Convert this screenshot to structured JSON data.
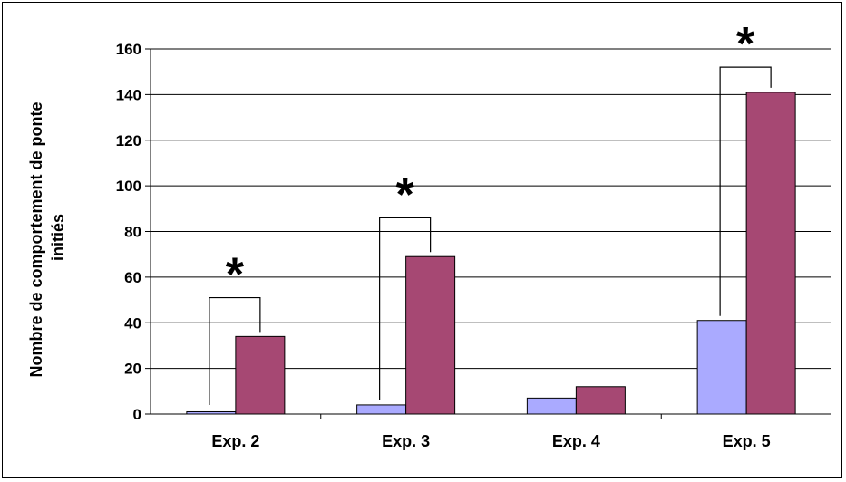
{
  "chart_data": {
    "type": "bar",
    "title": "",
    "xlabel": "",
    "ylabel_lines": [
      "Nombre de comportement de ponte",
      "initiés"
    ],
    "categories": [
      "Exp. 2",
      "Exp. 3",
      "Exp. 4",
      "Exp. 5"
    ],
    "series": [
      {
        "color": "#aaaaff",
        "values": [
          1,
          4,
          7,
          41
        ]
      },
      {
        "color": "#a64873",
        "values": [
          34,
          69,
          12,
          141
        ]
      }
    ],
    "ylim": [
      0,
      160
    ],
    "yticks": [
      "0",
      "20",
      "40",
      "60",
      "80",
      "100",
      "120",
      "140",
      "160"
    ],
    "grid": true,
    "legend": "none",
    "significance": [
      {
        "category_index": 0,
        "label": "*",
        "bracket_level": 51
      },
      {
        "category_index": 1,
        "label": "*",
        "bracket_level": 86
      },
      {
        "category_index": 3,
        "label": "*",
        "bracket_level": 152
      }
    ]
  }
}
